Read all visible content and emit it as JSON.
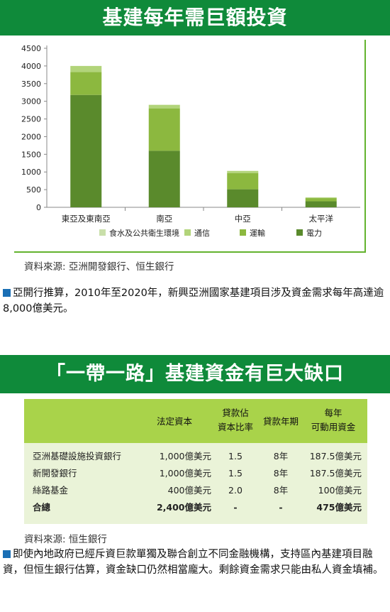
{
  "section1": {
    "title": "基建每年需巨額投資",
    "source": "資料來源: 亞洲開發銀行、恒生銀行",
    "paragraph": "亞開行推算，2010年至2020年，新興亞洲國家基建項目涉及資金需求每年高達逾8,000億美元。"
  },
  "chart_data": {
    "type": "bar",
    "stacked": true,
    "categories": [
      "東亞及東南亞",
      "南亞",
      "中亞",
      "太平洋"
    ],
    "series": [
      {
        "name": "電力",
        "values": [
          3180,
          1600,
          510,
          170
        ],
        "color": "#5a8a2c"
      },
      {
        "name": "運輸",
        "values": [
          650,
          1200,
          460,
          90
        ],
        "color": "#8cb83f"
      },
      {
        "name": "通信",
        "values": [
          170,
          100,
          60,
          20
        ],
        "color": "#b2d47a"
      },
      {
        "name": "食水及公共衛生環境",
        "values": [
          0,
          0,
          0,
          0
        ],
        "color": "#c9dfaa"
      }
    ],
    "legend_order": [
      "食水及公共衛生環境",
      "通信",
      "運輸",
      "電力"
    ],
    "yticks": [
      0,
      500,
      1000,
      1500,
      2000,
      2500,
      3000,
      3500,
      4000,
      4500
    ],
    "ylim": [
      0,
      4500
    ],
    "legend_placement": "bottom",
    "grid": false
  },
  "section2": {
    "title": "「一帶一路」基建資金有巨大缺口",
    "source": "資料來源: 恒生銀行",
    "paragraph": "即使內地政府已經斥資巨款單獨及聯合創立不同金融機構，支持區內基建項目融資，但恒生銀行估算，資金缺口仍然相當龐大。剩餘資金需求只能由私人資金填補。",
    "table": {
      "headers": [
        "",
        "法定資本",
        "貸款佔\n資本比率",
        "貸款年期",
        "每年\n可動用資金"
      ],
      "rows": [
        [
          "亞洲基礎設施投資銀行",
          "1,000億美元",
          "1.5",
          "8年",
          "187.5億美元"
        ],
        [
          "新開發銀行",
          "1,000億美元",
          "1.5",
          "8年",
          "187.5億美元"
        ],
        [
          "絲路基金",
          "400億美元",
          "2.0",
          "8年",
          "100億美元"
        ],
        [
          "合總",
          "2,400億美元",
          "-",
          "-",
          "475億美元"
        ]
      ]
    }
  }
}
